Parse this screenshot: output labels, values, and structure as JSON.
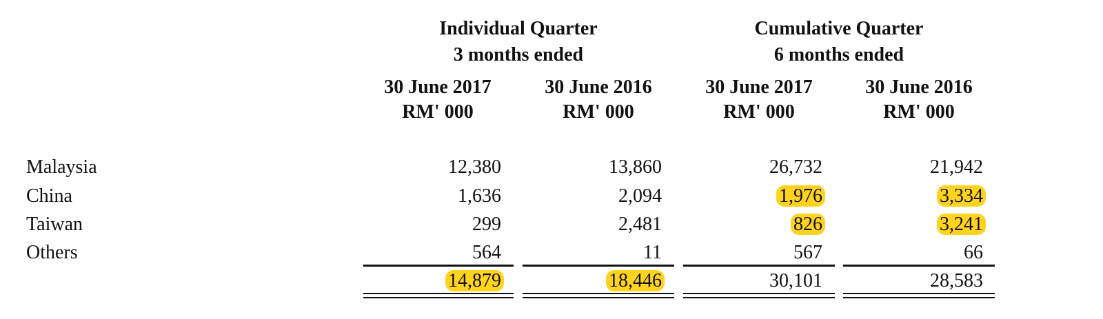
{
  "table": {
    "group_headers": [
      {
        "title": "Individual Quarter",
        "subtitle": "3 months ended"
      },
      {
        "title": "Cumulative Quarter",
        "subtitle": "6 months ended"
      }
    ],
    "columns": [
      {
        "date": "30 June 2017",
        "unit": "RM' 000"
      },
      {
        "date": "30 June 2016",
        "unit": "RM' 000"
      },
      {
        "date": "30 June 2017",
        "unit": "RM' 000"
      },
      {
        "date": "30 June 2016",
        "unit": "RM' 000"
      }
    ],
    "rows": [
      {
        "label": "Malaysia",
        "values": [
          "12,380",
          "13,860",
          "26,732",
          "21,942"
        ]
      },
      {
        "label": "China",
        "values": [
          "1,636",
          "2,094",
          "1,976",
          "3,334"
        ]
      },
      {
        "label": "Taiwan",
        "values": [
          "299",
          "2,481",
          "826",
          "3,241"
        ]
      },
      {
        "label": "Others",
        "values": [
          "564",
          "11",
          "567",
          "66"
        ]
      }
    ],
    "total": [
      "14,879",
      "18,446",
      "30,101",
      "28,583"
    ]
  }
}
